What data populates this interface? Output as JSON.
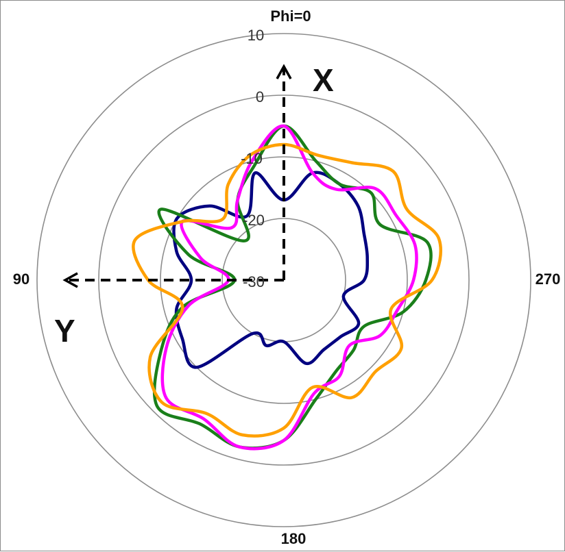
{
  "chart_data": {
    "type": "polar",
    "title": "",
    "angle_labels": {
      "top": "Phi=0",
      "left": "90",
      "right": "270",
      "bottom": "180"
    },
    "radial_tick_labels": [
      "10",
      "0",
      "-10",
      "-20",
      "-30"
    ],
    "radial_range": [
      -30,
      10
    ],
    "grid": true,
    "axis_arrows": {
      "x_label": "X",
      "y_label": "Y"
    },
    "series": [
      {
        "color": "#000080",
        "theta_deg": [
          0,
          15,
          30,
          45,
          60,
          75,
          90,
          105,
          120,
          135,
          150,
          165,
          180,
          195,
          210,
          225,
          240,
          255,
          270,
          285,
          300,
          315,
          330,
          345
        ],
        "r_db": [
          -17,
          -12,
          -18,
          -13,
          -10,
          -12,
          -15,
          -12,
          -11,
          -10,
          -20,
          -19,
          -20,
          -16,
          -17,
          -17,
          -16,
          -20,
          -17,
          -16,
          -15,
          -13,
          -12,
          -12
        ]
      },
      {
        "color": "#1a7f1a",
        "theta_deg": [
          0,
          15,
          30,
          45,
          60,
          75,
          90,
          105,
          120,
          135,
          150,
          165,
          180,
          195,
          210,
          225,
          240,
          255,
          270,
          285,
          300,
          315,
          330,
          345
        ],
        "r_db": [
          -5,
          -11,
          -15,
          -21,
          -7,
          -14,
          -22,
          -13,
          -7,
          -1,
          -3,
          -2,
          -4,
          -10,
          -13,
          -14,
          -15,
          -10,
          -7,
          -6,
          -12,
          -10,
          -12,
          -10
        ]
      },
      {
        "color": "#ff00ff",
        "theta_deg": [
          0,
          15,
          30,
          45,
          60,
          75,
          90,
          105,
          120,
          135,
          150,
          165,
          180,
          195,
          210,
          225,
          240,
          255,
          270,
          285,
          300,
          315,
          330,
          345
        ],
        "r_db": [
          -5,
          -10,
          -15,
          -18,
          -11,
          -16,
          -21,
          -14,
          -8,
          -3,
          -4,
          -2,
          -4,
          -11,
          -12,
          -15,
          -12,
          -11,
          -9,
          -8,
          -9,
          -9,
          -13,
          -12
        ]
      },
      {
        "color": "#ffa000",
        "theta_deg": [
          0,
          15,
          30,
          45,
          60,
          75,
          90,
          105,
          120,
          135,
          150,
          165,
          180,
          195,
          210,
          225,
          240,
          255,
          270,
          285,
          300,
          315,
          330,
          345
        ],
        "r_db": [
          -8,
          -9,
          -12,
          -16,
          -11,
          -5,
          -8,
          -13,
          -5,
          -2,
          -5,
          -4,
          -6,
          -12,
          -8,
          -9,
          -8,
          -12,
          -6,
          -4,
          -7,
          -5,
          -8,
          -9
        ]
      }
    ]
  }
}
